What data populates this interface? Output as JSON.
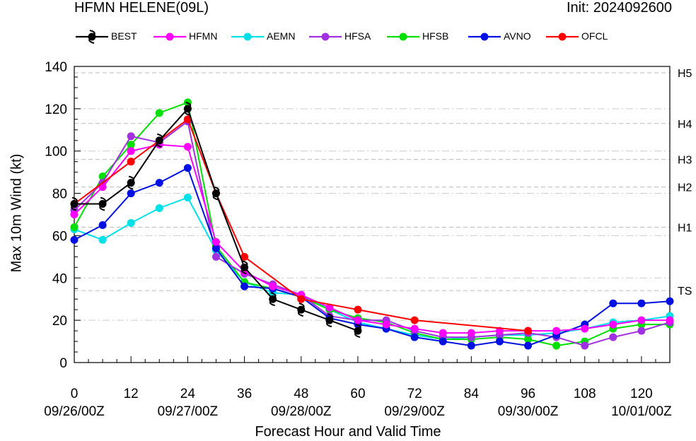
{
  "header": {
    "title_left": "HFMN HELENE(09L)",
    "title_right": "Init: 2024092600"
  },
  "chart_data": {
    "type": "line",
    "xlabel": "Forecast Hour and Valid Time",
    "ylabel": "Max 10m Wind (kt)",
    "xlim": [
      0,
      126
    ],
    "ylim": [
      0,
      140
    ],
    "x_ticks": [
      0,
      12,
      24,
      36,
      48,
      60,
      72,
      84,
      96,
      108,
      120
    ],
    "x_date_labels": [
      "09/26/00Z",
      "09/27/00Z",
      "09/28/00Z",
      "09/29/00Z",
      "09/30/00Z",
      "10/01/00Z"
    ],
    "y_ticks": [
      0,
      20,
      40,
      60,
      80,
      100,
      120,
      140
    ],
    "grid": true,
    "legend_position": "top",
    "category_lines": [
      {
        "label": "TS",
        "value": 34
      },
      {
        "label": "H1",
        "value": 64
      },
      {
        "label": "H2",
        "value": 83
      },
      {
        "label": "H3",
        "value": 96
      },
      {
        "label": "H4",
        "value": 113
      },
      {
        "label": "H5",
        "value": 137
      }
    ],
    "series": [
      {
        "name": "AEMN",
        "color": "#00e0e8",
        "x": [
          0,
          6,
          12,
          18,
          24,
          30,
          36,
          42,
          48,
          54,
          60,
          66,
          72,
          78,
          84,
          90,
          96,
          102,
          108,
          114,
          120,
          126
        ],
        "y": [
          63,
          58,
          66,
          73,
          78,
          53,
          38,
          33,
          32,
          25,
          19,
          16,
          13,
          11,
          12,
          13,
          13,
          14,
          16,
          19,
          20,
          22
        ]
      },
      {
        "name": "HFSB",
        "color": "#00e000",
        "x": [
          0,
          6,
          12,
          18,
          24,
          30,
          36,
          42,
          48,
          54,
          60,
          66,
          72,
          78,
          84,
          90,
          96,
          102,
          108,
          114,
          120,
          126
        ],
        "y": [
          64,
          88,
          103,
          118,
          123,
          55,
          38,
          35,
          31,
          25,
          21,
          19,
          14,
          11,
          11,
          12,
          11,
          8,
          10,
          16,
          18,
          18
        ]
      },
      {
        "name": "HFSA",
        "color": "#a030e0",
        "x": [
          0,
          6,
          12,
          18,
          24,
          30,
          36,
          42,
          48,
          54,
          60,
          66,
          72,
          78,
          84,
          90,
          96,
          102,
          108,
          114,
          120,
          126
        ],
        "y": [
          72,
          85,
          107,
          104,
          114,
          50,
          42,
          37,
          32,
          22,
          20,
          20,
          15,
          12,
          12,
          13,
          14,
          12,
          8,
          12,
          15,
          19
        ]
      },
      {
        "name": "AVNO",
        "color": "#0010e0",
        "x": [
          0,
          6,
          12,
          18,
          24,
          30,
          36,
          42,
          48,
          54,
          60,
          66,
          72,
          78,
          84,
          90,
          96,
          102,
          108,
          114,
          120,
          126
        ],
        "y": [
          58,
          65,
          80,
          85,
          92,
          54,
          36,
          35,
          31,
          21,
          18,
          16,
          12,
          10,
          8,
          10,
          8,
          13,
          18,
          28,
          28,
          29
        ]
      },
      {
        "name": "HFMN",
        "color": "#ff00ff",
        "x": [
          0,
          6,
          12,
          18,
          24,
          30,
          36,
          42,
          48,
          54,
          60,
          66,
          72,
          78,
          84,
          90,
          96,
          102,
          108,
          114,
          120,
          126
        ],
        "y": [
          70,
          83,
          100,
          103,
          102,
          57,
          43,
          36,
          32,
          26,
          20,
          18,
          16,
          14,
          14,
          15,
          15,
          15,
          16,
          18,
          20,
          20
        ]
      },
      {
        "name": "OFCL",
        "color": "#ff0000",
        "x": [
          0,
          12,
          24,
          30,
          36,
          48,
          60,
          72,
          96
        ],
        "y": [
          75,
          95,
          115,
          80,
          50,
          30,
          25,
          20,
          15
        ]
      },
      {
        "name": "BEST",
        "color": "#000000",
        "x": [
          0,
          6,
          12,
          18,
          24,
          30,
          36,
          42,
          48,
          54,
          60
        ],
        "y": [
          75,
          75,
          85,
          105,
          120,
          80,
          45,
          30,
          25,
          20,
          15
        ]
      }
    ]
  }
}
